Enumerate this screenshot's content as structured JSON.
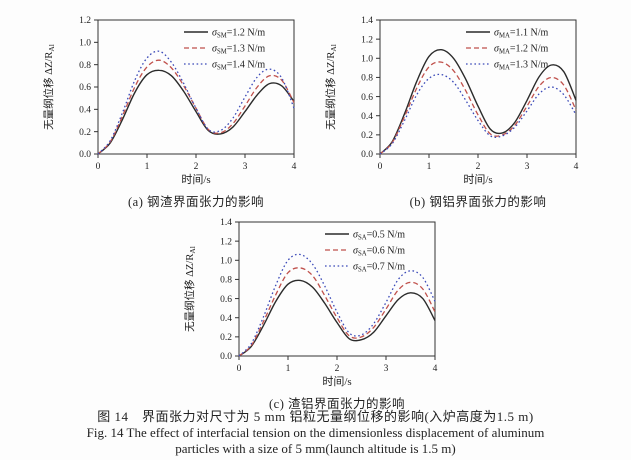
{
  "figure": {
    "caption_zh": "图 14　界面张力对尺寸为 5 mm 铝粒无量纲位移的影响(入炉高度为1.5 m)",
    "caption_en_line1": "Fig. 14   The effect of interfacial tension on the dimensionless displacement of aluminum",
    "caption_en_line2": "particles with a size of 5 mm(launch altitude is 1.5 m)"
  },
  "colors": {
    "solid": "#2b2b2b",
    "dashed": "#c0514c",
    "dotted": "#3b4ab8",
    "axis": "#333333"
  },
  "chart_data": [
    {
      "id": "a",
      "type": "line",
      "caption": "(a) 钢渣界面张力的影响",
      "xlabel": "时间/s",
      "ylabel": "无量纲位移 ΔZ/R",
      "ylabel_sub": "Al",
      "xlim": [
        0,
        4
      ],
      "ylim": [
        0,
        1.2
      ],
      "xticks": [
        "0",
        "1",
        "2",
        "3",
        "4"
      ],
      "yticks": [
        "0.0",
        "0.2",
        "0.4",
        "0.6",
        "0.8",
        "1.0",
        "1.2"
      ],
      "grid": false,
      "legend_position": "top-right",
      "x": [
        0,
        0.25,
        0.5,
        0.75,
        1,
        1.25,
        1.5,
        1.75,
        2,
        2.25,
        2.5,
        2.75,
        3,
        3.25,
        3.5,
        3.75,
        4
      ],
      "series": [
        {
          "name": "σSM=1.2 N/m",
          "sym": "σ",
          "sub": "SM",
          "rest": "=1.2 N/m",
          "style": "solid",
          "values": [
            0,
            0.1,
            0.31,
            0.55,
            0.71,
            0.75,
            0.7,
            0.56,
            0.38,
            0.21,
            0.18,
            0.24,
            0.38,
            0.53,
            0.63,
            0.61,
            0.47
          ]
        },
        {
          "name": "σSM=1.3 N/m",
          "sym": "σ",
          "sub": "SM",
          "rest": "=1.3 N/m",
          "style": "dashed",
          "values": [
            0,
            0.11,
            0.34,
            0.6,
            0.78,
            0.84,
            0.77,
            0.61,
            0.41,
            0.22,
            0.19,
            0.27,
            0.43,
            0.6,
            0.7,
            0.66,
            0.46
          ]
        },
        {
          "name": "σSM=1.4 N/m",
          "sym": "σ",
          "sub": "SM",
          "rest": "=1.4 N/m",
          "style": "dotted",
          "values": [
            0,
            0.12,
            0.37,
            0.66,
            0.86,
            0.92,
            0.82,
            0.63,
            0.41,
            0.22,
            0.21,
            0.32,
            0.51,
            0.69,
            0.76,
            0.68,
            0.41
          ]
        }
      ]
    },
    {
      "id": "b",
      "type": "line",
      "caption": "(b) 钢铝界面张力的影响",
      "xlabel": "时间/s",
      "ylabel": "无量纲位移 ΔZ/R",
      "ylabel_sub": "Al",
      "xlim": [
        0,
        4
      ],
      "ylim": [
        0,
        1.4
      ],
      "xticks": [
        "0",
        "1",
        "2",
        "3",
        "4"
      ],
      "yticks": [
        "0.0",
        "0.2",
        "0.4",
        "0.6",
        "0.8",
        "1.0",
        "1.2",
        "1.4"
      ],
      "grid": false,
      "legend_position": "top-right",
      "x": [
        0,
        0.25,
        0.5,
        0.75,
        1,
        1.25,
        1.5,
        1.75,
        2,
        2.25,
        2.5,
        2.75,
        3,
        3.25,
        3.5,
        3.75,
        4
      ],
      "series": [
        {
          "name": "σMA=1.1 N/m",
          "sym": "σ",
          "sub": "MA",
          "rest": "=1.1 N/m",
          "style": "solid",
          "values": [
            0,
            0.13,
            0.42,
            0.76,
            1.02,
            1.09,
            1.0,
            0.78,
            0.5,
            0.26,
            0.22,
            0.33,
            0.56,
            0.81,
            0.93,
            0.86,
            0.56
          ]
        },
        {
          "name": "σMA=1.2 N/m",
          "sym": "σ",
          "sub": "MA",
          "rest": "=1.2 N/m",
          "style": "dashed",
          "values": [
            0,
            0.12,
            0.39,
            0.69,
            0.91,
            0.96,
            0.87,
            0.66,
            0.41,
            0.21,
            0.2,
            0.3,
            0.5,
            0.71,
            0.8,
            0.72,
            0.46
          ]
        },
        {
          "name": "σMA=1.3 N/m",
          "sym": "σ",
          "sub": "MA",
          "rest": "=1.3 N/m",
          "style": "dotted",
          "values": [
            0,
            0.11,
            0.35,
            0.62,
            0.79,
            0.83,
            0.75,
            0.56,
            0.35,
            0.19,
            0.19,
            0.28,
            0.45,
            0.63,
            0.7,
            0.62,
            0.41
          ]
        }
      ]
    },
    {
      "id": "c",
      "type": "line",
      "caption": "(c) 渣铝界面张力的影响",
      "xlabel": "时间/s",
      "ylabel": "无量纲位移 ΔZ/R",
      "ylabel_sub": "Al",
      "xlim": [
        0,
        4
      ],
      "ylim": [
        0,
        1.4
      ],
      "xticks": [
        "0",
        "1",
        "2",
        "3",
        "4"
      ],
      "yticks": [
        "0.0",
        "0.2",
        "0.4",
        "0.6",
        "0.8",
        "1.0",
        "1.2",
        "1.4"
      ],
      "grid": false,
      "legend_position": "top-right",
      "x": [
        0,
        0.25,
        0.5,
        0.75,
        1,
        1.25,
        1.5,
        1.75,
        2,
        2.25,
        2.5,
        2.75,
        3,
        3.25,
        3.5,
        3.75,
        4
      ],
      "series": [
        {
          "name": "σSA=0.5 N/m",
          "sym": "σ",
          "sub": "SA",
          "rest": "=0.5 N/m",
          "style": "solid",
          "values": [
            0,
            0.1,
            0.32,
            0.57,
            0.75,
            0.79,
            0.72,
            0.55,
            0.35,
            0.18,
            0.17,
            0.25,
            0.42,
            0.59,
            0.66,
            0.6,
            0.37
          ]
        },
        {
          "name": "σSA=0.6 N/m",
          "sym": "σ",
          "sub": "SA",
          "rest": "=0.6 N/m",
          "style": "dashed",
          "values": [
            0,
            0.11,
            0.36,
            0.64,
            0.87,
            0.92,
            0.84,
            0.63,
            0.4,
            0.21,
            0.2,
            0.3,
            0.49,
            0.69,
            0.77,
            0.7,
            0.46
          ]
        },
        {
          "name": "σSA=0.7 N/m",
          "sym": "σ",
          "sub": "SA",
          "rest": "=0.7 N/m",
          "style": "dotted",
          "values": [
            0,
            0.13,
            0.41,
            0.74,
            1.0,
            1.06,
            0.96,
            0.73,
            0.46,
            0.24,
            0.22,
            0.34,
            0.56,
            0.8,
            0.89,
            0.82,
            0.57
          ]
        }
      ]
    }
  ]
}
